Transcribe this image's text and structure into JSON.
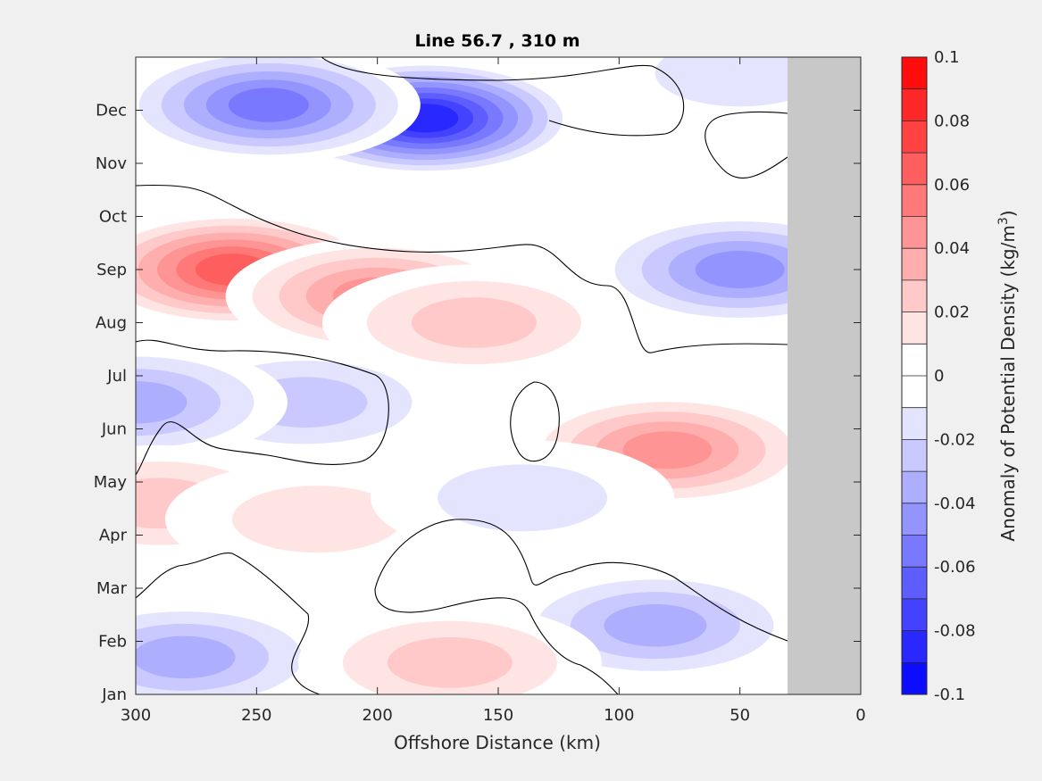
{
  "chart_data": {
    "type": "heatmap",
    "title": "Line 56.7 , 310 m",
    "xlabel": "Offshore Distance (km)",
    "xlim": [
      300,
      0
    ],
    "x_ticks": [
      "300",
      "250",
      "200",
      "150",
      "100",
      "50",
      "0"
    ],
    "y_ticks": [
      "Jan",
      "Feb",
      "Mar",
      "Apr",
      "May",
      "Jun",
      "Jul",
      "Aug",
      "Sep",
      "Oct",
      "Nov",
      "Dec"
    ],
    "colorbar": {
      "label_main": "Anomaly of Potential Density (kg/m",
      "label_sup": "3",
      "label_end": ")",
      "ticks": [
        "0.1",
        "0.08",
        "0.06",
        "0.04",
        "0.02",
        "0",
        "-0.02",
        "-0.04",
        "-0.06",
        "-0.08",
        "-0.1"
      ],
      "range": [
        -0.1,
        0.1
      ],
      "levels": 20
    },
    "no_data_region_km": [
      30,
      0
    ],
    "no_data_color": "#c8c8c8",
    "features": [
      {
        "sign": "negative",
        "x_km": 180,
        "month": 10.85,
        "value": -0.09
      },
      {
        "sign": "negative",
        "x_km": 245,
        "month": 11.1,
        "value": -0.055
      },
      {
        "sign": "positive",
        "x_km": 260,
        "month": 8.0,
        "value": 0.07
      },
      {
        "sign": "positive",
        "x_km": 200,
        "month": 7.5,
        "value": 0.045
      },
      {
        "sign": "positive",
        "x_km": 160,
        "month": 7.0,
        "value": 0.03
      },
      {
        "sign": "negative",
        "x_km": 50,
        "month": 8.0,
        "value": -0.05
      },
      {
        "sign": "negative",
        "x_km": 230,
        "month": 5.5,
        "value": -0.03
      },
      {
        "sign": "negative",
        "x_km": 300,
        "month": 5.5,
        "value": -0.04
      },
      {
        "sign": "positive",
        "x_km": 80,
        "month": 4.6,
        "value": 0.05
      },
      {
        "sign": "positive",
        "x_km": 290,
        "month": 3.6,
        "value": 0.03
      },
      {
        "sign": "positive",
        "x_km": 225,
        "month": 3.3,
        "value": 0.02
      },
      {
        "sign": "negative",
        "x_km": 85,
        "month": 1.3,
        "value": -0.04
      },
      {
        "sign": "negative",
        "x_km": 280,
        "month": 0.7,
        "value": -0.035
      },
      {
        "sign": "positive",
        "x_km": 170,
        "month": 0.6,
        "value": 0.025
      },
      {
        "sign": "negative",
        "x_km": 50,
        "month": 11.7,
        "value": -0.02
      },
      {
        "sign": "negative",
        "x_km": 140,
        "month": 3.7,
        "value": -0.02
      }
    ]
  }
}
